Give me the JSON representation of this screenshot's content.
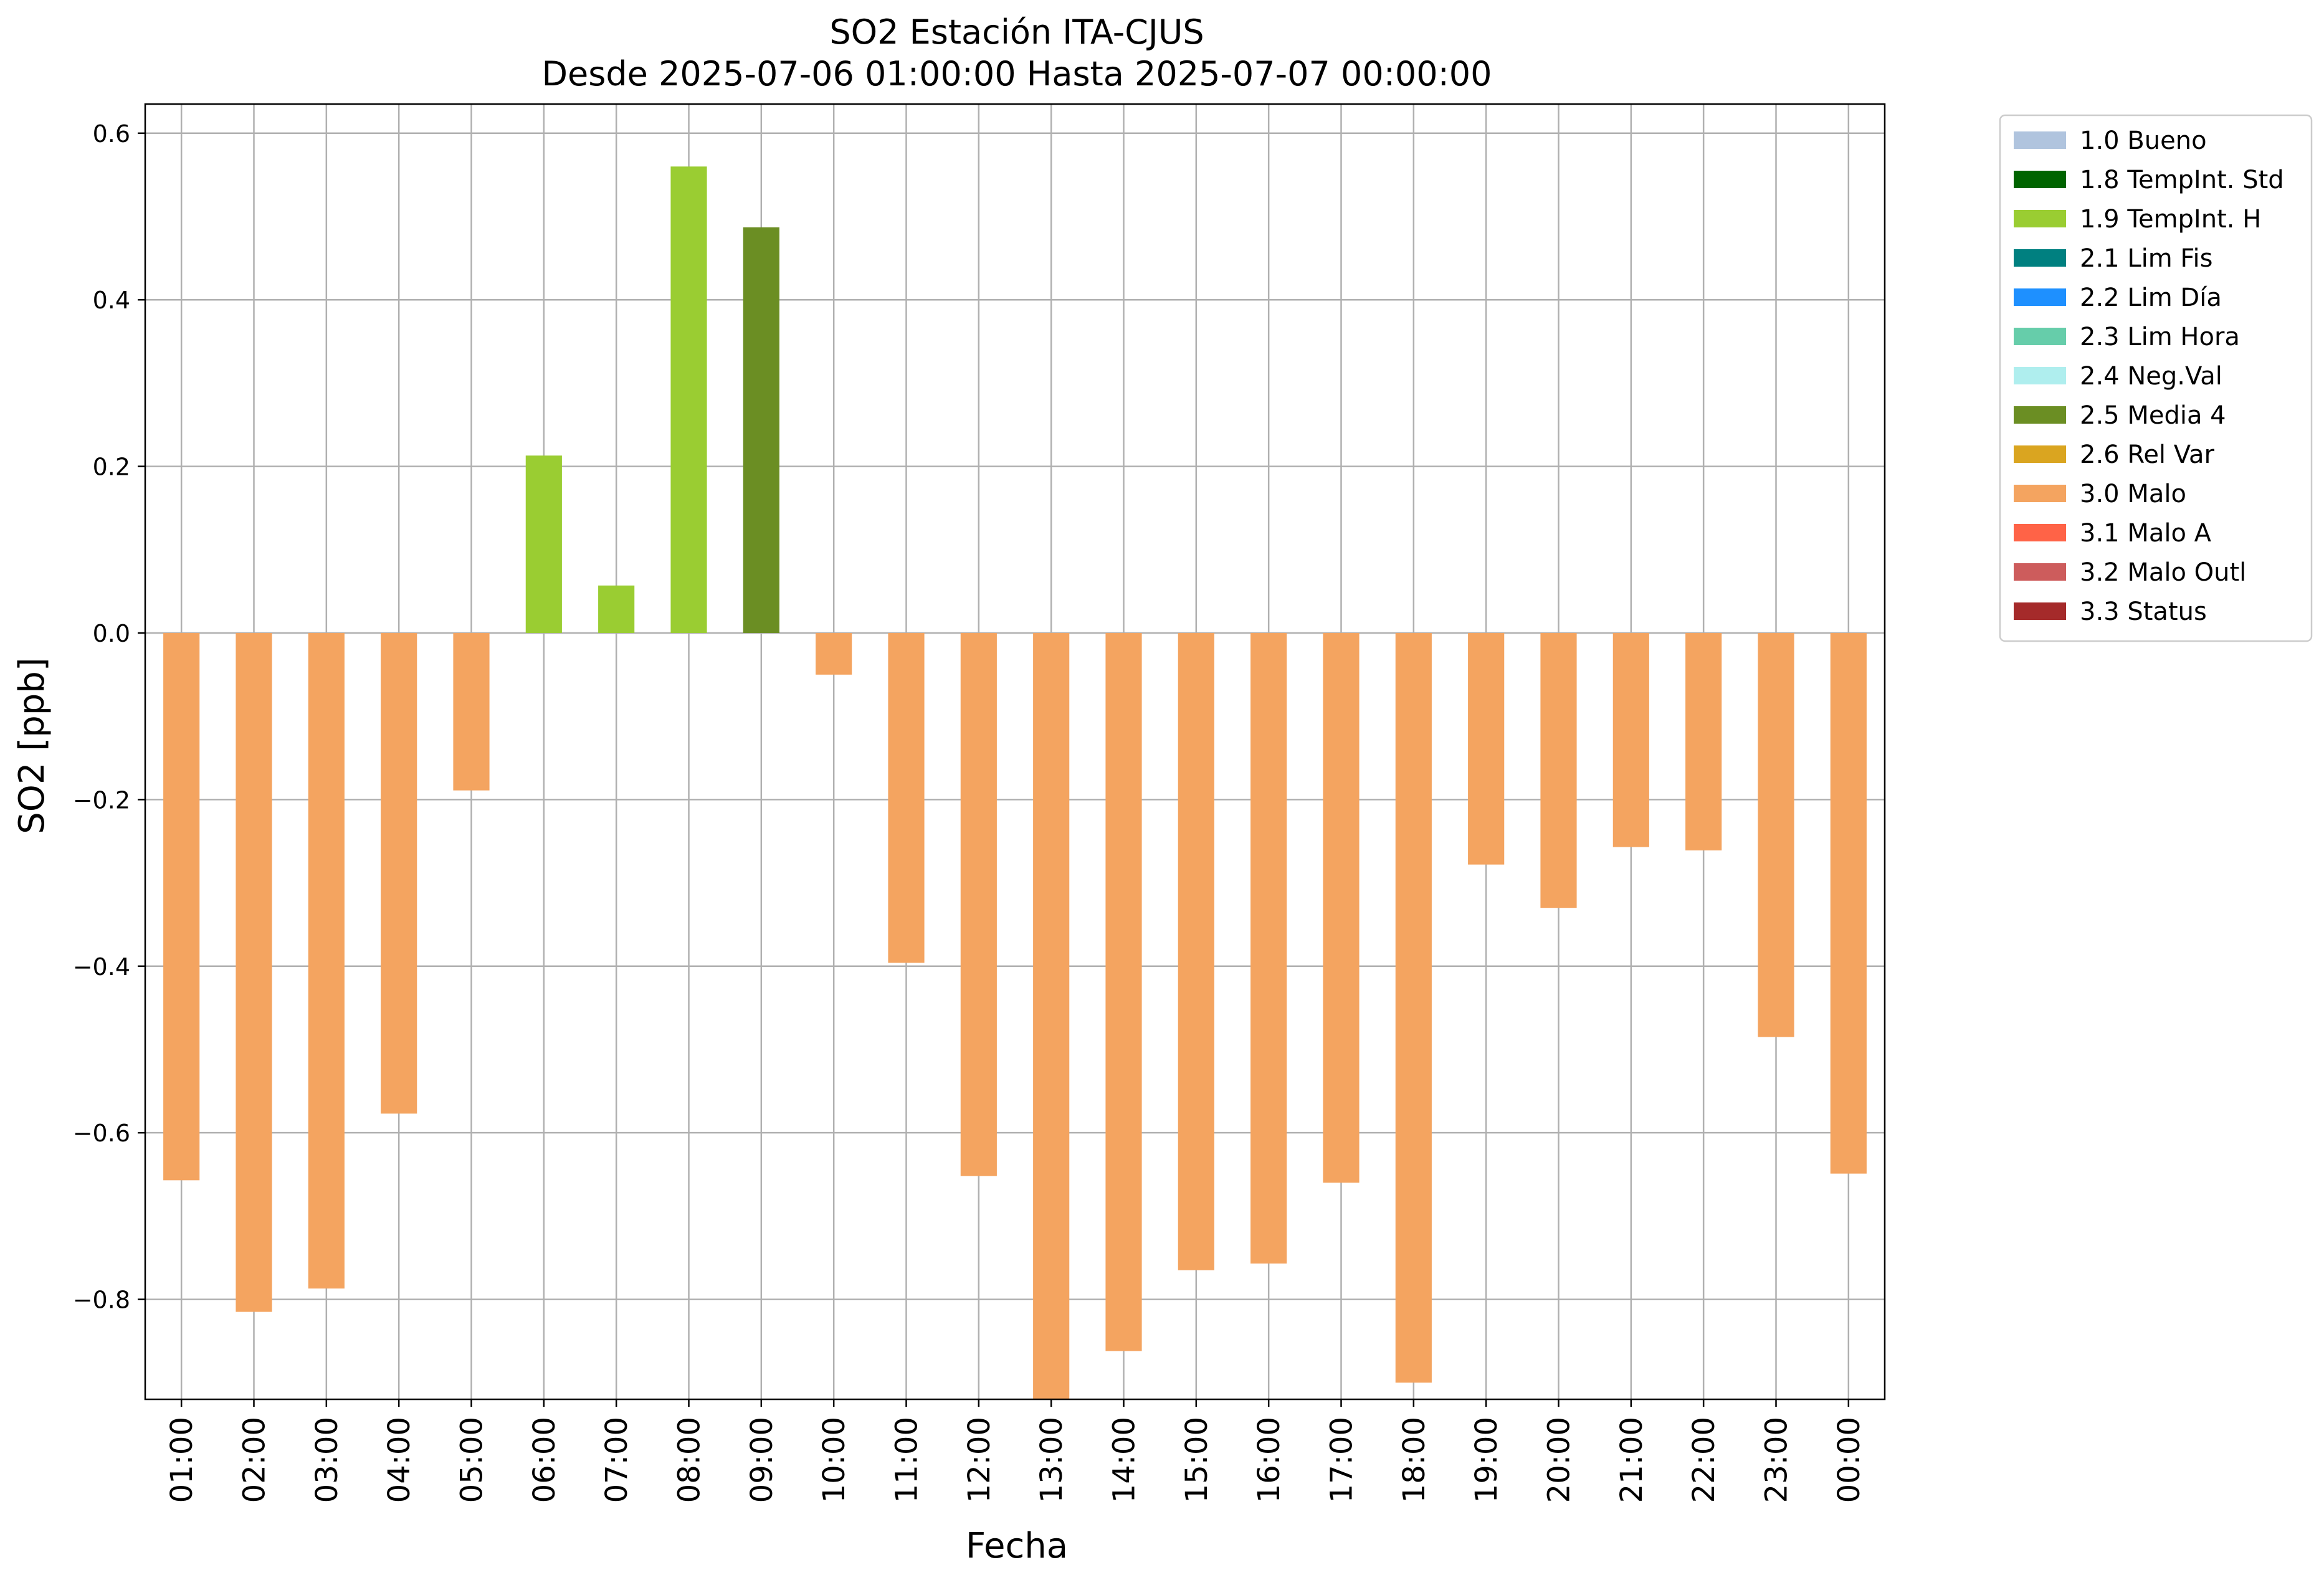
{
  "chart_data": {
    "type": "bar",
    "title": "SO2 Estación ITA-CJUS",
    "subtitle": "Desde 2025-07-06 01:00:00 Hasta 2025-07-07 00:00:00",
    "xlabel": "Fecha",
    "ylabel": "SO2 [ppb]",
    "ylim": [
      -0.92,
      0.635
    ],
    "yticks": [
      0.6,
      0.4,
      0.2,
      0.0,
      -0.2,
      -0.4,
      -0.6,
      -0.8
    ],
    "ytick_labels": [
      "0.6",
      "0.4",
      "0.2",
      "0.0",
      "−0.2",
      "−0.4",
      "−0.6",
      "−0.8"
    ],
    "grid": true,
    "legend_position": "outside-top-right",
    "categories": [
      "01:00",
      "02:00",
      "03:00",
      "04:00",
      "05:00",
      "06:00",
      "07:00",
      "08:00",
      "09:00",
      "10:00",
      "11:00",
      "12:00",
      "13:00",
      "14:00",
      "15:00",
      "16:00",
      "17:00",
      "18:00",
      "19:00",
      "20:00",
      "21:00",
      "22:00",
      "23:00",
      "00:00"
    ],
    "values": [
      -0.657,
      -0.815,
      -0.787,
      -0.577,
      -0.189,
      0.213,
      0.057,
      0.56,
      0.487,
      -0.05,
      -0.396,
      -0.652,
      -0.92,
      -0.862,
      -0.765,
      -0.757,
      -0.66,
      -0.9,
      -0.278,
      -0.33,
      -0.257,
      -0.261,
      -0.485,
      -0.649
    ],
    "flags": [
      "3.0 Malo",
      "3.0 Malo",
      "3.0 Malo",
      "3.0 Malo",
      "3.0 Malo",
      "1.9 TempInt. H",
      "1.9 TempInt. H",
      "1.9 TempInt. H",
      "2.5 Media 4",
      "3.0 Malo",
      "3.0 Malo",
      "3.0 Malo",
      "3.0 Malo",
      "3.0 Malo",
      "3.0 Malo",
      "3.0 Malo",
      "3.0 Malo",
      "3.0 Malo",
      "3.0 Malo",
      "3.0 Malo",
      "3.0 Malo",
      "3.0 Malo",
      "3.0 Malo",
      "3.0 Malo"
    ],
    "legend": [
      {
        "label": "1.0 Bueno",
        "color": "#b0c4de"
      },
      {
        "label": "1.8 TempInt. Std",
        "color": "#006400"
      },
      {
        "label": "1.9 TempInt. H",
        "color": "#9acd32"
      },
      {
        "label": "2.1 Lim Fis",
        "color": "#008080"
      },
      {
        "label": "2.2 Lim Día",
        "color": "#1e90ff"
      },
      {
        "label": "2.3 Lim Hora",
        "color": "#66cdaa"
      },
      {
        "label": "2.4 Neg.Val",
        "color": "#afeeee"
      },
      {
        "label": "2.5 Media 4",
        "color": "#6b8e23"
      },
      {
        "label": "2.6 Rel Var",
        "color": "#daa520"
      },
      {
        "label": "3.0 Malo",
        "color": "#f4a460"
      },
      {
        "label": "3.1 Malo A",
        "color": "#ff6347"
      },
      {
        "label": "3.2 Malo Outl",
        "color": "#cd5c5c"
      },
      {
        "label": "3.3 Status",
        "color": "#a52a2a"
      }
    ]
  }
}
